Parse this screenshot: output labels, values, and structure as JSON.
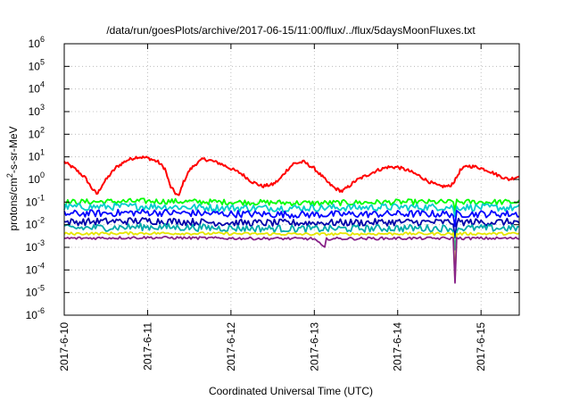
{
  "chart_data": {
    "type": "line",
    "title": "/data/run/goesPlots/archive/2017-06-15/11:00/flux/../flux/5daysMoonFluxes.txt",
    "xlabel": "Coordinated Universal Time (UTC)",
    "ylabel": {
      "prefix": "protons/cm",
      "superscript": "2",
      "suffix": "-s-sr-MeV"
    },
    "x_axis": {
      "kind": "date",
      "xlim": [
        "2017-06-10T00:00",
        "2017-06-15T11:00"
      ],
      "ticks": [
        "2017-6-10",
        "2017-6-11",
        "2017-6-12",
        "2017-6-13",
        "2017-6-14",
        "2017-6-15"
      ]
    },
    "y_axis": {
      "scale": "log",
      "ylim": [
        1e-06,
        1000000.0
      ],
      "ticks": [
        {
          "base": "10",
          "exp": "-6"
        },
        {
          "base": "10",
          "exp": "-5"
        },
        {
          "base": "10",
          "exp": "-4"
        },
        {
          "base": "10",
          "exp": "-3"
        },
        {
          "base": "10",
          "exp": "-2"
        },
        {
          "base": "10",
          "exp": "-1"
        },
        {
          "base": "10",
          "exp": "0"
        },
        {
          "base": "10",
          "exp": "1"
        },
        {
          "base": "10",
          "exp": "2"
        },
        {
          "base": "10",
          "exp": "3"
        },
        {
          "base": "10",
          "exp": "4"
        },
        {
          "base": "10",
          "exp": "5"
        },
        {
          "base": "10",
          "exp": "6"
        }
      ]
    },
    "grid": true,
    "legend": "none",
    "series": [
      {
        "color": "#ff0000",
        "points": [
          [
            "2017-06-10T00:00",
            6
          ],
          [
            "2017-06-10T03:00",
            3
          ],
          [
            "2017-06-10T06:00",
            1.2
          ],
          [
            "2017-06-10T08:00",
            0.4
          ],
          [
            "2017-06-10T09:30",
            0.22
          ],
          [
            "2017-06-10T11:00",
            0.6
          ],
          [
            "2017-06-10T13:00",
            1.5
          ],
          [
            "2017-06-10T15:00",
            3.5
          ],
          [
            "2017-06-10T18:00",
            7
          ],
          [
            "2017-06-10T21:00",
            10
          ],
          [
            "2017-06-11T00:00",
            9
          ],
          [
            "2017-06-11T03:00",
            6
          ],
          [
            "2017-06-11T05:00",
            3
          ],
          [
            "2017-06-11T06:30",
            0.5
          ],
          [
            "2017-06-11T08:00",
            0.25
          ],
          [
            "2017-06-11T09:00",
            0.18
          ],
          [
            "2017-06-11T10:00",
            0.6
          ],
          [
            "2017-06-11T12:00",
            2.5
          ],
          [
            "2017-06-11T14:00",
            5
          ],
          [
            "2017-06-11T16:00",
            8
          ],
          [
            "2017-06-11T18:00",
            7
          ],
          [
            "2017-06-11T21:00",
            5
          ],
          [
            "2017-06-12T00:00",
            3
          ],
          [
            "2017-06-12T03:00",
            1.8
          ],
          [
            "2017-06-12T06:00",
            0.8
          ],
          [
            "2017-06-12T09:00",
            0.5
          ],
          [
            "2017-06-12T12:00",
            0.6
          ],
          [
            "2017-06-12T14:00",
            1.0
          ],
          [
            "2017-06-12T16:00",
            2.5
          ],
          [
            "2017-06-12T18:00",
            5
          ],
          [
            "2017-06-12T21:00",
            6
          ],
          [
            "2017-06-13T00:00",
            3
          ],
          [
            "2017-06-13T02:00",
            1.5
          ],
          [
            "2017-06-13T04:00",
            0.7
          ],
          [
            "2017-06-13T06:00",
            0.4
          ],
          [
            "2017-06-13T08:00",
            0.3
          ],
          [
            "2017-06-13T10:00",
            0.5
          ],
          [
            "2017-06-13T12:00",
            0.9
          ],
          [
            "2017-06-13T15:00",
            1.5
          ],
          [
            "2017-06-13T18:00",
            2.5
          ],
          [
            "2017-06-13T21:00",
            3.5
          ],
          [
            "2017-06-14T00:00",
            3.5
          ],
          [
            "2017-06-14T03:00",
            2.5
          ],
          [
            "2017-06-14T06:00",
            1.5
          ],
          [
            "2017-06-14T09:00",
            0.8
          ],
          [
            "2017-06-14T12:00",
            0.5
          ],
          [
            "2017-06-14T15:00",
            0.5
          ],
          [
            "2017-06-14T16:30",
            0.9
          ],
          [
            "2017-06-14T18:00",
            2.5
          ],
          [
            "2017-06-14T20:00",
            4
          ],
          [
            "2017-06-14T23:00",
            3.5
          ],
          [
            "2017-06-15T02:00",
            2.5
          ],
          [
            "2017-06-15T05:00",
            1.5
          ],
          [
            "2017-06-15T08:00",
            1.0
          ],
          [
            "2017-06-15T11:00",
            1.4
          ]
        ]
      },
      {
        "color": "#00ff00",
        "base": [
          [
            "2017-06-10T00:00",
            0.1
          ],
          [
            "2017-06-11T00:00",
            0.11
          ],
          [
            "2017-06-12T00:00",
            0.1
          ],
          [
            "2017-06-13T00:00",
            0.09
          ],
          [
            "2017-06-14T00:00",
            0.1
          ],
          [
            "2017-06-14T16:00",
            0.1
          ],
          [
            "2017-06-14T16:30",
            0.05
          ],
          [
            "2017-06-14T17:00",
            0.1
          ],
          [
            "2017-06-15T11:00",
            0.1
          ]
        ]
      },
      {
        "color": "#00cccc",
        "base": [
          [
            "2017-06-10T00:00",
            0.06
          ],
          [
            "2017-06-11T00:00",
            0.065
          ],
          [
            "2017-06-12T00:00",
            0.055
          ],
          [
            "2017-06-13T00:00",
            0.055
          ],
          [
            "2017-06-14T00:00",
            0.06
          ],
          [
            "2017-06-14T16:00",
            0.06
          ],
          [
            "2017-06-14T16:30",
            0.02
          ],
          [
            "2017-06-14T17:00",
            0.06
          ],
          [
            "2017-06-15T11:00",
            0.055
          ]
        ]
      },
      {
        "color": "#0000ff",
        "base": [
          [
            "2017-06-10T00:00",
            0.03
          ],
          [
            "2017-06-11T00:00",
            0.035
          ],
          [
            "2017-06-12T00:00",
            0.03
          ],
          [
            "2017-06-13T00:00",
            0.028
          ],
          [
            "2017-06-14T00:00",
            0.03
          ],
          [
            "2017-06-14T16:00",
            0.03
          ],
          [
            "2017-06-14T16:30",
            0.006
          ],
          [
            "2017-06-14T17:00",
            0.03
          ],
          [
            "2017-06-15T11:00",
            0.03
          ]
        ]
      },
      {
        "color": "#0000aa",
        "base": [
          [
            "2017-06-10T00:00",
            0.013
          ],
          [
            "2017-06-11T00:00",
            0.015
          ],
          [
            "2017-06-12T00:00",
            0.012
          ],
          [
            "2017-06-13T00:00",
            0.012
          ],
          [
            "2017-06-14T00:00",
            0.013
          ],
          [
            "2017-06-14T16:00",
            0.013
          ],
          [
            "2017-06-14T16:30",
            0.002
          ],
          [
            "2017-06-14T17:00",
            0.013
          ],
          [
            "2017-06-15T11:00",
            0.013
          ]
        ]
      },
      {
        "color": "#00aaaa",
        "base": [
          [
            "2017-06-10T00:00",
            0.007
          ],
          [
            "2017-06-11T00:00",
            0.008
          ],
          [
            "2017-06-12T00:00",
            0.007
          ],
          [
            "2017-06-13T00:00",
            0.0065
          ],
          [
            "2017-06-14T00:00",
            0.007
          ],
          [
            "2017-06-14T16:00",
            0.007
          ],
          [
            "2017-06-14T16:30",
            0.0006
          ],
          [
            "2017-06-14T17:00",
            0.007
          ],
          [
            "2017-06-15T11:00",
            0.007
          ]
        ]
      },
      {
        "color": "#e6e600",
        "base": [
          [
            "2017-06-10T00:00",
            0.004
          ],
          [
            "2017-06-11T00:00",
            0.0042
          ],
          [
            "2017-06-12T00:00",
            0.004
          ],
          [
            "2017-06-13T00:00",
            0.0038
          ],
          [
            "2017-06-14T00:00",
            0.004
          ],
          [
            "2017-06-14T16:00",
            0.004
          ],
          [
            "2017-06-14T16:30",
            4e-05
          ],
          [
            "2017-06-14T17:00",
            0.004
          ],
          [
            "2017-06-15T11:00",
            0.004
          ]
        ]
      },
      {
        "color": "#882288",
        "base": [
          [
            "2017-06-10T00:00",
            0.0025
          ],
          [
            "2017-06-11T00:00",
            0.0027
          ],
          [
            "2017-06-12T00:00",
            0.0025
          ],
          [
            "2017-06-13T00:00",
            0.0024
          ],
          [
            "2017-06-13T03:00",
            0.0009
          ],
          [
            "2017-06-13T03:30",
            0.0024
          ],
          [
            "2017-06-14T00:00",
            0.0025
          ],
          [
            "2017-06-14T16:00",
            0.0025
          ],
          [
            "2017-06-14T16:30",
            3e-05
          ],
          [
            "2017-06-14T17:00",
            0.0025
          ],
          [
            "2017-06-15T11:00",
            0.0025
          ]
        ]
      }
    ]
  }
}
